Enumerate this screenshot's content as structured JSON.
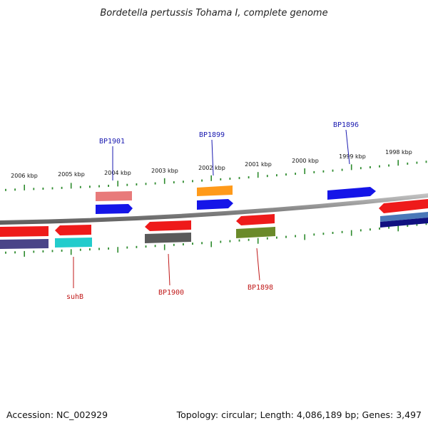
{
  "title": "Bordetella pertussis Tohama I, complete genome",
  "footer": {
    "accession": "Accession: NC_002929",
    "summary": "Topology: circular; Length: 4,086,189 bp; Genes: 3,497"
  },
  "colors": {
    "backbone": "#8a8a8a",
    "ticks": "#2e8b2e",
    "forward_label": "#1a1ab0",
    "reverse_label": "#c01818"
  },
  "kbp_labels": [
    "2006 kbp",
    "2005 kbp",
    "2004 kbp",
    "2003 kbp",
    "2002 kbp",
    "2001 kbp",
    "2000 kbp",
    "1999 kbp",
    "1998 kbp"
  ],
  "gene_labels": {
    "forward": [
      "BP1901",
      "BP1899",
      "BP1896"
    ],
    "reverse": [
      "suhB",
      "BP1900",
      "BP1898"
    ]
  },
  "feature_colors": {
    "forward_outer": [
      "#e87a7a",
      "#ff9a1a"
    ],
    "forward_inner": [
      "#1515e8",
      "#1515e8",
      "#1515e8"
    ],
    "right_cluster": [
      "#ee1a1a",
      "#4a78b8",
      "#101080"
    ],
    "reverse_inner": [
      "#ee1a1a",
      "#ee1a1a",
      "#ee1a1a",
      "#ee1a1a"
    ],
    "reverse_outer": [
      "#4a4488",
      "#22cccc",
      "#5a5a5a",
      "#6a8a2a"
    ]
  }
}
